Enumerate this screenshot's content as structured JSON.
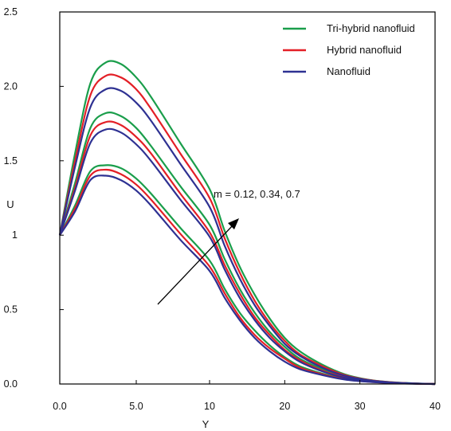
{
  "chart_data": {
    "type": "line",
    "title": "",
    "xlabel": "Y",
    "ylabel": "U",
    "xlim": [
      0,
      40
    ],
    "ylim": [
      0,
      2.5
    ],
    "x_ticks": [
      "0.0",
      "5.0",
      "10",
      "20",
      "30",
      "40"
    ],
    "x_tick_values": [
      0,
      5,
      10,
      20,
      30,
      40
    ],
    "y_ticks": [
      "0.0",
      "0.5",
      "1",
      "1.5",
      "2.0",
      "2.5"
    ],
    "y_tick_values": [
      0,
      0.5,
      1,
      1.5,
      2,
      2.5
    ],
    "grid": false,
    "legend_position": "top-right",
    "annotation": "m = 0.12, 0.34, 0.7",
    "x": [
      0,
      1,
      2,
      3,
      4,
      5,
      6,
      8,
      10,
      12,
      14,
      16,
      18,
      20,
      22,
      25,
      28,
      31,
      34,
      37,
      40
    ],
    "series": [
      {
        "name": "Tri-hybrid nanofluid",
        "color": "#1a9e4b",
        "group": "m = 0.12",
        "values": [
          1.0,
          1.2,
          1.43,
          1.47,
          1.45,
          1.38,
          1.28,
          1.05,
          0.83,
          0.64,
          0.48,
          0.36,
          0.26,
          0.18,
          0.12,
          0.07,
          0.035,
          0.018,
          0.008,
          0.003,
          0.0
        ]
      },
      {
        "name": "Hybrid nanofluid",
        "color": "#e31f26",
        "group": "m = 0.12",
        "values": [
          1.0,
          1.18,
          1.4,
          1.44,
          1.41,
          1.34,
          1.24,
          1.01,
          0.79,
          0.61,
          0.45,
          0.33,
          0.24,
          0.17,
          0.11,
          0.065,
          0.032,
          0.016,
          0.007,
          0.003,
          0.0
        ]
      },
      {
        "name": "Nanofluid",
        "color": "#2e3192",
        "group": "m = 0.12",
        "values": [
          1.0,
          1.16,
          1.37,
          1.4,
          1.37,
          1.3,
          1.2,
          0.97,
          0.76,
          0.58,
          0.43,
          0.31,
          0.22,
          0.15,
          0.1,
          0.06,
          0.03,
          0.015,
          0.007,
          0.002,
          0.0
        ]
      },
      {
        "name": "",
        "color": "#1a9e4b",
        "group": "m = 0.34",
        "values": [
          1.0,
          1.35,
          1.72,
          1.82,
          1.8,
          1.72,
          1.6,
          1.33,
          1.07,
          0.84,
          0.64,
          0.48,
          0.35,
          0.25,
          0.17,
          0.1,
          0.05,
          0.025,
          0.01,
          0.004,
          0.0
        ]
      },
      {
        "name": "",
        "color": "#e31f26",
        "group": "m = 0.34",
        "values": [
          1.0,
          1.32,
          1.67,
          1.76,
          1.74,
          1.66,
          1.55,
          1.28,
          1.02,
          0.8,
          0.61,
          0.45,
          0.33,
          0.23,
          0.16,
          0.09,
          0.045,
          0.022,
          0.01,
          0.004,
          0.0
        ]
      },
      {
        "name": "",
        "color": "#2e3192",
        "group": "m = 0.34",
        "values": [
          1.0,
          1.3,
          1.62,
          1.71,
          1.69,
          1.61,
          1.5,
          1.24,
          0.99,
          0.77,
          0.58,
          0.43,
          0.31,
          0.22,
          0.15,
          0.085,
          0.042,
          0.02,
          0.009,
          0.003,
          0.0
        ]
      },
      {
        "name": "",
        "color": "#1a9e4b",
        "group": "m = 0.7",
        "values": [
          1.0,
          1.55,
          2.02,
          2.16,
          2.15,
          2.06,
          1.93,
          1.62,
          1.31,
          1.03,
          0.79,
          0.6,
          0.44,
          0.31,
          0.22,
          0.13,
          0.065,
          0.03,
          0.013,
          0.005,
          0.0
        ]
      },
      {
        "name": "",
        "color": "#e31f26",
        "group": "m = 0.7",
        "values": [
          1.0,
          1.5,
          1.94,
          2.07,
          2.06,
          1.98,
          1.85,
          1.55,
          1.25,
          0.98,
          0.75,
          0.56,
          0.41,
          0.29,
          0.2,
          0.12,
          0.06,
          0.028,
          0.012,
          0.004,
          0.0
        ]
      },
      {
        "name": "",
        "color": "#2e3192",
        "group": "m = 0.7",
        "values": [
          1.0,
          1.46,
          1.86,
          1.98,
          1.97,
          1.89,
          1.77,
          1.48,
          1.19,
          0.93,
          0.71,
          0.53,
          0.39,
          0.27,
          0.19,
          0.11,
          0.055,
          0.026,
          0.011,
          0.004,
          0.0
        ]
      }
    ],
    "legend": [
      {
        "label": "Tri-hybrid nanofluid",
        "color": "#1a9e4b"
      },
      {
        "label": "Hybrid nanofluid",
        "color": "#e31f26"
      },
      {
        "label": "Nanofluid",
        "color": "#2e3192"
      }
    ]
  }
}
